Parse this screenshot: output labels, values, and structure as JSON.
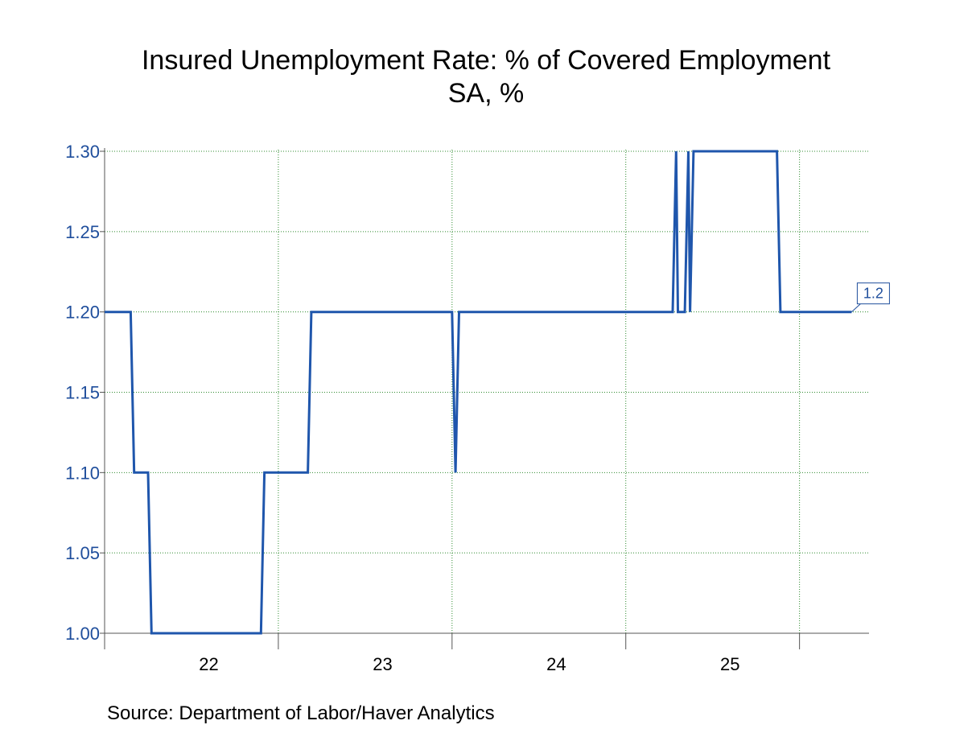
{
  "title": "Insured Unemployment Rate: % of Covered Employment",
  "subtitle": "SA, %",
  "source": "Source:  Department of Labor/Haver Analytics",
  "colors": {
    "line": "#1f56ac",
    "grid": "#2e8b2e",
    "axis_text": "#1f4e9c"
  },
  "chart_data": {
    "type": "line",
    "title": "Insured Unemployment Rate: % of Covered Employment",
    "subtitle": "SA, %",
    "xlabel": "",
    "ylabel": "",
    "ylim": [
      1.0,
      1.3
    ],
    "xlim": [
      2021.9,
      2026.3
    ],
    "grid": true,
    "yticks": [
      1.0,
      1.05,
      1.1,
      1.15,
      1.2,
      1.25,
      1.3
    ],
    "ytick_labels": [
      "1.00",
      "1.05",
      "1.10",
      "1.15",
      "1.20",
      "1.25",
      "1.30"
    ],
    "xticks": [
      2022.5,
      2023.5,
      2024.5,
      2025.5
    ],
    "xtick_labels": [
      "22",
      "23",
      "24",
      "25"
    ],
    "x_divisions": [
      2022.9,
      2023.9,
      2024.9,
      2025.9
    ],
    "end_label": "1.2",
    "series": [
      {
        "values": [
          [
            2021.9,
            1.2
          ],
          [
            2022.05,
            1.2
          ],
          [
            2022.07,
            1.1
          ],
          [
            2022.15,
            1.1
          ],
          [
            2022.17,
            1.0
          ],
          [
            2022.8,
            1.0
          ],
          [
            2022.82,
            1.1
          ],
          [
            2023.07,
            1.1
          ],
          [
            2023.09,
            1.2
          ],
          [
            2023.9,
            1.2
          ],
          [
            2023.92,
            1.1
          ],
          [
            2023.94,
            1.2
          ],
          [
            2025.17,
            1.2
          ],
          [
            2025.19,
            1.3
          ],
          [
            2025.2,
            1.2
          ],
          [
            2025.24,
            1.2
          ],
          [
            2025.26,
            1.3
          ],
          [
            2025.27,
            1.2
          ],
          [
            2025.29,
            1.3
          ],
          [
            2025.77,
            1.3
          ],
          [
            2025.79,
            1.2
          ],
          [
            2026.2,
            1.2
          ]
        ]
      }
    ]
  }
}
